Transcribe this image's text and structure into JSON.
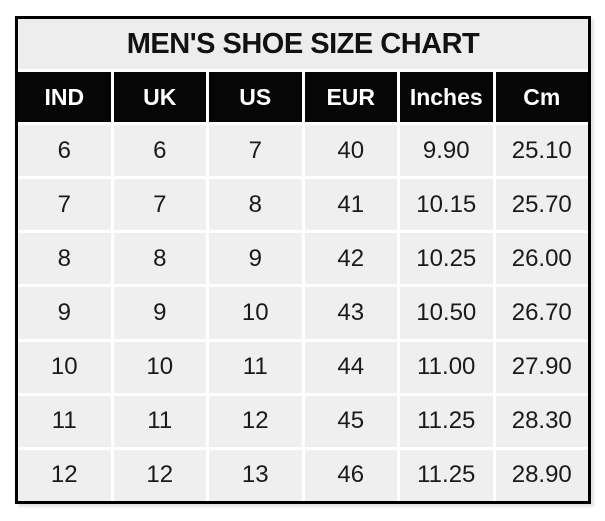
{
  "title": "MEN'S SHOE SIZE CHART",
  "chart_data": {
    "type": "table",
    "title": "MEN'S SHOE SIZE CHART",
    "columns": [
      "IND",
      "UK",
      "US",
      "EUR",
      "Inches",
      "Cm"
    ],
    "rows": [
      [
        "6",
        "6",
        "7",
        "40",
        "9.90",
        "25.10"
      ],
      [
        "7",
        "7",
        "8",
        "41",
        "10.15",
        "25.70"
      ],
      [
        "8",
        "8",
        "9",
        "42",
        "10.25",
        "26.00"
      ],
      [
        "9",
        "9",
        "10",
        "43",
        "10.50",
        "26.70"
      ],
      [
        "10",
        "10",
        "11",
        "44",
        "11.00",
        "27.90"
      ],
      [
        "11",
        "11",
        "12",
        "45",
        "11.25",
        "28.30"
      ],
      [
        "12",
        "12",
        "13",
        "46",
        "11.25",
        "28.90"
      ]
    ]
  },
  "colors": {
    "outer_border": "#000000",
    "title_bg": "#ededed",
    "header_bg": "#060606",
    "header_text": "#ffffff",
    "cell_bg": "#efefef",
    "cell_text": "#1a1a1a",
    "gridline": "#ffffff"
  }
}
